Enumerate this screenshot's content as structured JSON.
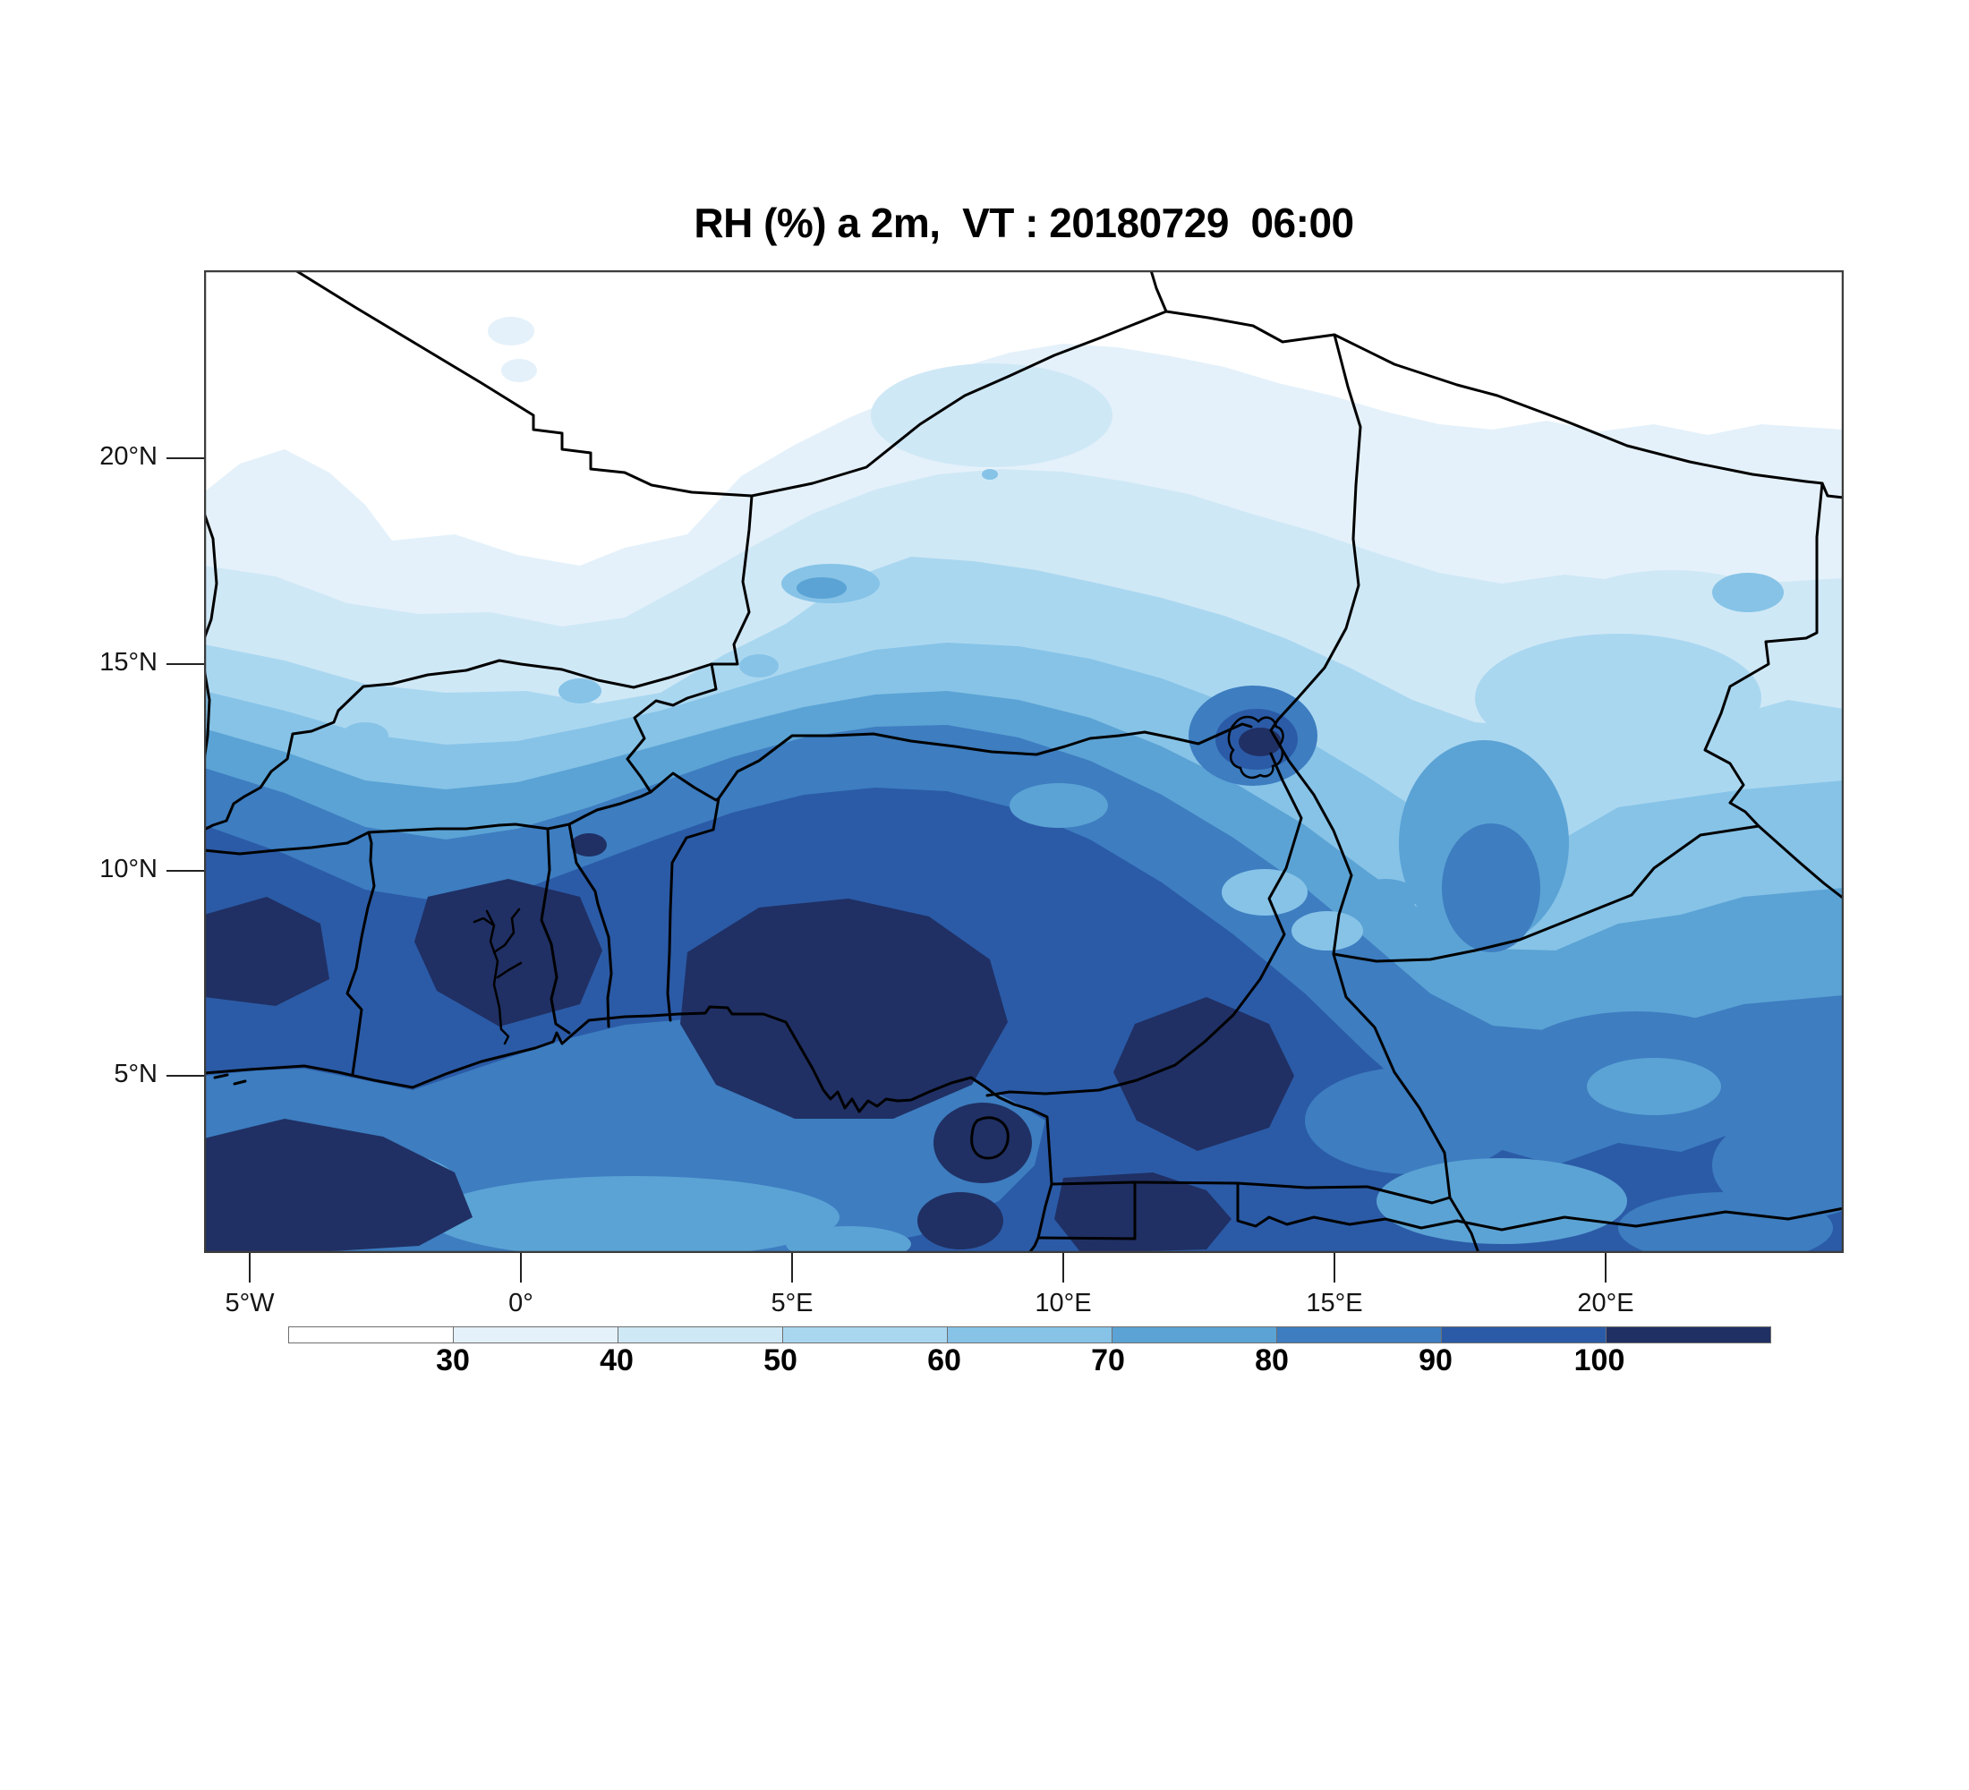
{
  "title": "RH (%) a 2m,  VT : 20180729  06:00",
  "axes": {
    "y_ticks": [
      "20°N",
      "15°N",
      "10°N",
      "5°N"
    ],
    "x_ticks": [
      "5°W",
      "0°",
      "5°E",
      "10°E",
      "15°E",
      "20°E"
    ]
  },
  "colorbar": {
    "tick_labels": [
      "30",
      "40",
      "50",
      "60",
      "70",
      "80",
      "90",
      "100"
    ],
    "segment_colors": [
      "#ffffff",
      "#e4f1fa",
      "#cfe8f6",
      "#aad7f0",
      "#86c3e7",
      "#5ba3d5",
      "#3d7dc0",
      "#2b5ba7",
      "#203064"
    ]
  },
  "chart_data": {
    "type": "heatmap",
    "title": "RH (%) a 2m,  VT : 20180729  06:00",
    "variable": "RH (%) a 2m",
    "valid_time": "20180729 06:00",
    "contour_levels": [
      30,
      40,
      50,
      60,
      70,
      80,
      90,
      100
    ],
    "xlabel_ticks": [
      "5°W",
      "0°",
      "5°E",
      "10°E",
      "15°E",
      "20°E"
    ],
    "ylabel_ticks": [
      "20°N",
      "15°N",
      "10°N",
      "5°N"
    ],
    "legend_position": "bottom",
    "pattern": "Relative humidity increases from white (<30%) over the Sahara in the north to dark navy (>100 scale end) along the Gulf of Guinea coast in the south"
  }
}
